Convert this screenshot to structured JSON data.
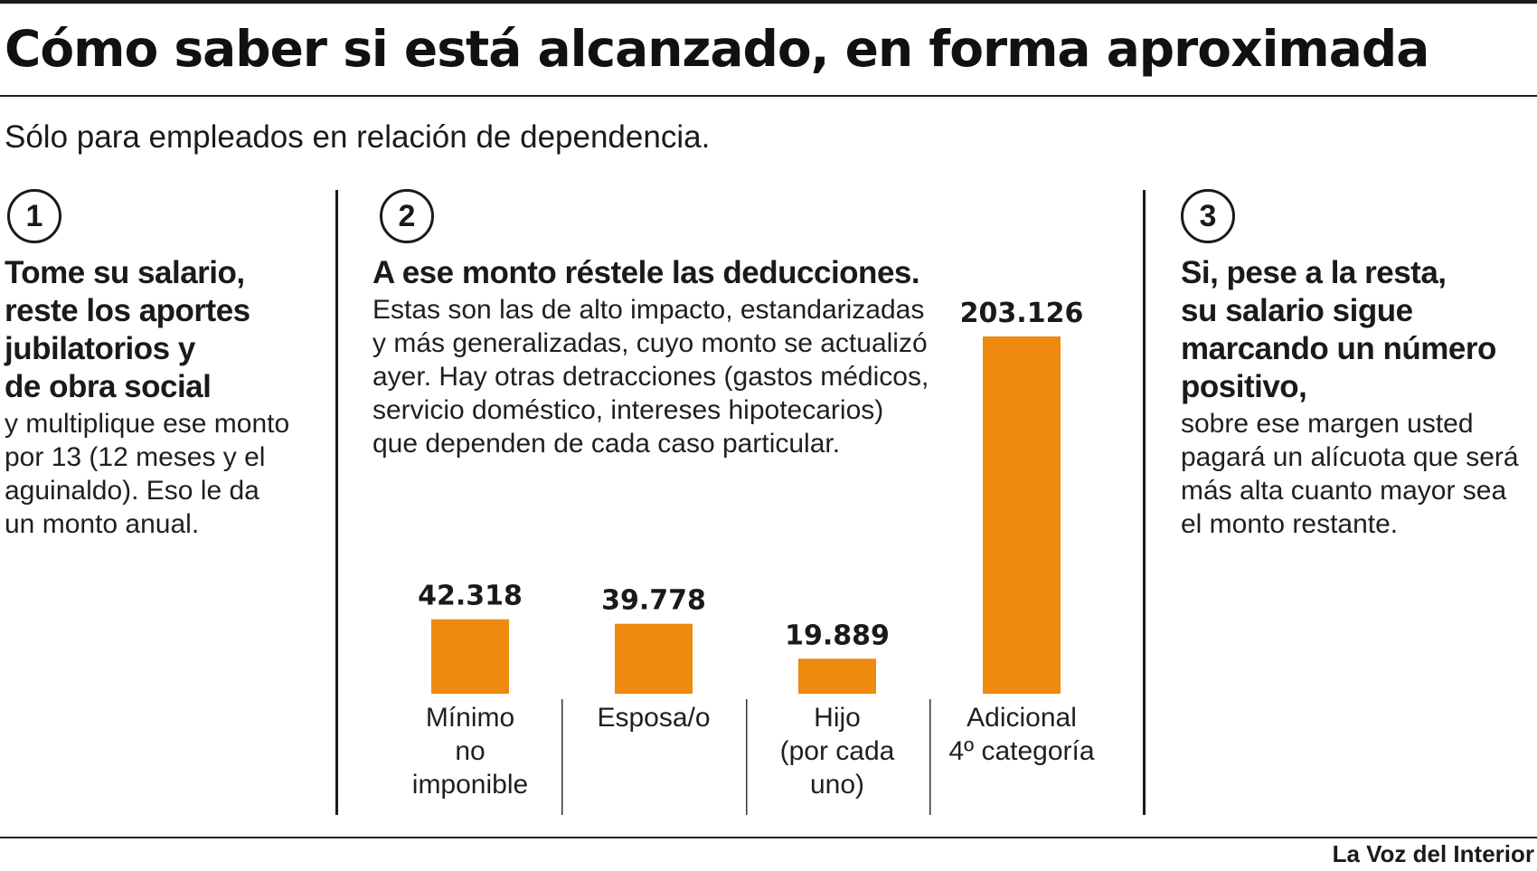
{
  "title": "Cómo saber si está alcanzado, en forma aproximada",
  "subtitle": "Sólo para empleados en relación de dependencia.",
  "steps": [
    {
      "number": "1",
      "heading": [
        "Tome su salario,",
        "reste los aportes",
        "jubilatorios y",
        "de obra social"
      ],
      "body": [
        "y multiplique ese monto",
        "por 13 (12 meses y el",
        "aguinaldo). Eso le da",
        "un monto anual."
      ]
    },
    {
      "number": "2",
      "heading": [
        "A ese monto réstele las deducciones."
      ],
      "body": [
        "Estas son las de alto impacto, estandarizadas",
        "y más generalizadas, cuyo monto se actualizó",
        "ayer. Hay otras detracciones (gastos médicos,",
        "servicio doméstico, intereses hipotecarios)",
        "que dependen de cada caso particular."
      ]
    },
    {
      "number": "3",
      "heading": [
        "Si, pese a la resta,",
        "su salario sigue",
        "marcando un número",
        "positivo,"
      ],
      "body": [
        "sobre ese margen usted",
        "pagará un alícuota que será",
        "más alta cuanto mayor sea",
        "el monto restante."
      ]
    }
  ],
  "chart_data": {
    "type": "bar",
    "title": "",
    "categories": [
      [
        "Mínimo",
        "no",
        "imponible"
      ],
      [
        "Esposa/o"
      ],
      [
        "Hijo",
        "(por cada",
        "uno)"
      ],
      [
        "Adicional",
        "4º categoría"
      ]
    ],
    "value_labels": [
      "42.318",
      "39.778",
      "19.889",
      "203.126"
    ],
    "values": [
      42318,
      39778,
      19889,
      203126
    ],
    "ylim": [
      0,
      203126
    ],
    "color": "#ee8a0f",
    "grid": false
  },
  "footer": "La Voz del Interior"
}
